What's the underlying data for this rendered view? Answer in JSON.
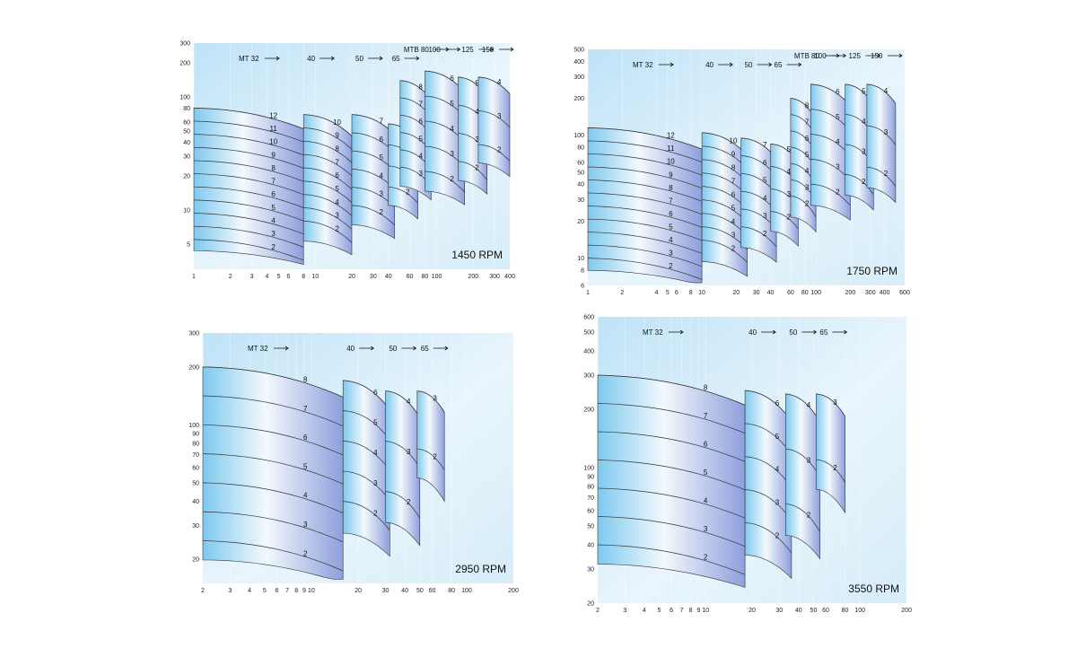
{
  "chart_data": [
    {
      "type": "area",
      "rpm_label": "1450 RPM",
      "xscale": "log",
      "yscale": "log",
      "xlim": [
        1,
        400
      ],
      "ylim": [
        3,
        300
      ],
      "x_ticks": [
        "1",
        "2",
        "3",
        "4",
        "5",
        "6",
        "8",
        "10",
        "20",
        "30",
        "40",
        "60",
        "80",
        "100",
        "200",
        "300",
        "400"
      ],
      "y_ticks": [
        "5",
        "10",
        "20",
        "30",
        "40",
        "50",
        "60",
        "80",
        "100",
        "200",
        "300"
      ],
      "models": [
        {
          "label": "MT 32",
          "arrow": true
        },
        {
          "label": "40",
          "arrow": true
        },
        {
          "label": "50",
          "arrow": true
        },
        {
          "label": "65",
          "arrow": true
        },
        {
          "label": "MTB 80",
          "arrow": true
        },
        {
          "label": "100",
          "arrow": true
        },
        {
          "label": "125",
          "arrow": true
        },
        {
          "label": "150",
          "arrow": true
        }
      ],
      "families": [
        {
          "model": "MT 32",
          "q_start": 1,
          "q_end": 8,
          "stages": [
            "2",
            "3",
            "4",
            "5",
            "6",
            "7",
            "8",
            "9",
            "10",
            "11",
            "12"
          ],
          "head_min": 5.5,
          "head_max": 80
        },
        {
          "model": "40",
          "q_start": 8,
          "q_end": 20,
          "stages": [
            "2",
            "3",
            "4",
            "5",
            "6",
            "7",
            "8",
            "9",
            "10"
          ],
          "head_min": 8,
          "head_max": 70
        },
        {
          "model": "50",
          "q_start": 20,
          "q_end": 45,
          "stages": [
            "2",
            "3",
            "4",
            "5",
            "6",
            "7"
          ],
          "head_min": 11,
          "head_max": 70
        },
        {
          "model": "65",
          "q_start": 40,
          "q_end": 70,
          "stages": [
            "2",
            "3",
            "4",
            "5"
          ],
          "head_min": 16,
          "head_max": 58
        },
        {
          "model": "MTB 80",
          "q_start": 50,
          "q_end": 90,
          "stages": [
            "3",
            "4",
            "5",
            "6",
            "7",
            "8"
          ],
          "head_min": 24,
          "head_max": 140
        },
        {
          "model": "100",
          "q_start": 80,
          "q_end": 170,
          "stages": [
            "2",
            "3",
            "4",
            "5",
            "6"
          ],
          "head_min": 22,
          "head_max": 170
        },
        {
          "model": "125",
          "q_start": 150,
          "q_end": 260,
          "stages": [
            "2",
            "3",
            "4",
            "5"
          ],
          "head_min": 27,
          "head_max": 150
        },
        {
          "model": "150",
          "q_start": 220,
          "q_end": 400,
          "stages": [
            "2",
            "3",
            "4"
          ],
          "head_min": 38,
          "head_max": 150
        }
      ]
    },
    {
      "type": "area",
      "rpm_label": "1750 RPM",
      "xscale": "log",
      "yscale": "log",
      "xlim": [
        1,
        600
      ],
      "ylim": [
        6,
        500
      ],
      "x_ticks": [
        "1",
        "2",
        "4",
        "5",
        "6",
        "8",
        "10",
        "20",
        "30",
        "40",
        "60",
        "80",
        "100",
        "200",
        "300",
        "400",
        "600"
      ],
      "y_ticks": [
        "6",
        "8",
        "10",
        "20",
        "30",
        "40",
        "50",
        "60",
        "80",
        "100",
        "200",
        "300",
        "400",
        "500"
      ],
      "models": [
        {
          "label": "MT 32",
          "arrow": true
        },
        {
          "label": "40",
          "arrow": true
        },
        {
          "label": "50",
          "arrow": true
        },
        {
          "label": "65",
          "arrow": true
        },
        {
          "label": "MTB 80",
          "arrow": true
        },
        {
          "label": "100",
          "arrow": true
        },
        {
          "label": "125",
          "arrow": true
        },
        {
          "label": "150",
          "arrow": true
        }
      ],
      "families": [
        {
          "model": "MT 32",
          "q_start": 1,
          "q_end": 10,
          "stages": [
            "2",
            "3",
            "4",
            "5",
            "6",
            "7",
            "8",
            "9",
            "10",
            "11",
            "12"
          ],
          "head_min": 10,
          "head_max": 115
        },
        {
          "model": "40",
          "q_start": 10,
          "q_end": 25,
          "stages": [
            "2",
            "3",
            "4",
            "5",
            "6",
            "7",
            "8",
            "9",
            "10"
          ],
          "head_min": 14,
          "head_max": 105
        },
        {
          "model": "50",
          "q_start": 22,
          "q_end": 45,
          "stages": [
            "2",
            "3",
            "4",
            "5",
            "6",
            "7"
          ],
          "head_min": 18,
          "head_max": 95
        },
        {
          "model": "65",
          "q_start": 40,
          "q_end": 70,
          "stages": [
            "2",
            "3",
            "4",
            "5"
          ],
          "head_min": 24,
          "head_max": 85
        },
        {
          "model": "MTB 80",
          "q_start": 60,
          "q_end": 100,
          "stages": [
            "2",
            "3",
            "4",
            "5",
            "6",
            "7",
            "8"
          ],
          "head_min": 32,
          "head_max": 200
        },
        {
          "model": "100",
          "q_start": 90,
          "q_end": 200,
          "stages": [
            "2",
            "3",
            "4",
            "5",
            "6"
          ],
          "head_min": 40,
          "head_max": 260
        },
        {
          "model": "125",
          "q_start": 180,
          "q_end": 320,
          "stages": [
            "2",
            "3",
            "4",
            "5"
          ],
          "head_min": 48,
          "head_max": 260
        },
        {
          "model": "150",
          "q_start": 280,
          "q_end": 500,
          "stages": [
            "2",
            "3",
            "4"
          ],
          "head_min": 55,
          "head_max": 260
        }
      ]
    },
    {
      "type": "area",
      "rpm_label": "2950 RPM",
      "xscale": "log",
      "yscale": "log",
      "xlim": [
        2,
        200
      ],
      "ylim": [
        15,
        300
      ],
      "x_ticks": [
        "2",
        "3",
        "4",
        "5",
        "6",
        "7",
        "8",
        "9",
        "10",
        "20",
        "30",
        "40",
        "50",
        "60",
        "80",
        "100",
        "200"
      ],
      "y_ticks": [
        "20",
        "30",
        "40",
        "50",
        "60",
        "70",
        "80",
        "90",
        "100",
        "200",
        "300"
      ],
      "models": [
        {
          "label": "MT 32",
          "arrow": true
        },
        {
          "label": "40",
          "arrow": true
        },
        {
          "label": "50",
          "arrow": true
        },
        {
          "label": "65",
          "arrow": true
        }
      ],
      "families": [
        {
          "model": "MT 32",
          "q_start": 2,
          "q_end": 16,
          "stages": [
            "2",
            "3",
            "4",
            "5",
            "6",
            "7",
            "8"
          ],
          "head_min": 25,
          "head_max": 200
        },
        {
          "model": "40",
          "q_start": 16,
          "q_end": 32,
          "stages": [
            "2",
            "3",
            "4",
            "5",
            "6"
          ],
          "head_min": 40,
          "head_max": 170
        },
        {
          "model": "50",
          "q_start": 30,
          "q_end": 50,
          "stages": [
            "2",
            "3",
            "4"
          ],
          "head_min": 45,
          "head_max": 150
        },
        {
          "model": "65",
          "q_start": 48,
          "q_end": 72,
          "stages": [
            "2",
            "3"
          ],
          "head_min": 75,
          "head_max": 150
        }
      ]
    },
    {
      "type": "area",
      "rpm_label": "3550 RPM",
      "xscale": "log",
      "yscale": "log",
      "xlim": [
        2,
        200
      ],
      "ylim": [
        20,
        600
      ],
      "x_ticks": [
        "2",
        "3",
        "4",
        "5",
        "6",
        "7",
        "8",
        "9",
        "10",
        "20",
        "30",
        "40",
        "50",
        "60",
        "80",
        "100",
        "200"
      ],
      "y_ticks": [
        "20",
        "30",
        "40",
        "50",
        "60",
        "70",
        "80",
        "90",
        "100",
        "200",
        "300",
        "400",
        "500",
        "600"
      ],
      "models": [
        {
          "label": "MT 32",
          "arrow": true
        },
        {
          "label": "40",
          "arrow": true
        },
        {
          "label": "50",
          "arrow": true
        },
        {
          "label": "65",
          "arrow": true
        }
      ],
      "families": [
        {
          "model": "MT 32",
          "q_start": 2,
          "q_end": 18,
          "stages": [
            "2",
            "3",
            "4",
            "5",
            "6",
            "7",
            "8"
          ],
          "head_min": 40,
          "head_max": 300
        },
        {
          "model": "40",
          "q_start": 18,
          "q_end": 36,
          "stages": [
            "2",
            "3",
            "4",
            "5",
            "6"
          ],
          "head_min": 52,
          "head_max": 250
        },
        {
          "model": "50",
          "q_start": 33,
          "q_end": 55,
          "stages": [
            "2",
            "3",
            "4"
          ],
          "head_min": 65,
          "head_max": 240
        },
        {
          "model": "65",
          "q_start": 52,
          "q_end": 80,
          "stages": [
            "2",
            "3"
          ],
          "head_min": 110,
          "head_max": 240
        }
      ]
    }
  ]
}
